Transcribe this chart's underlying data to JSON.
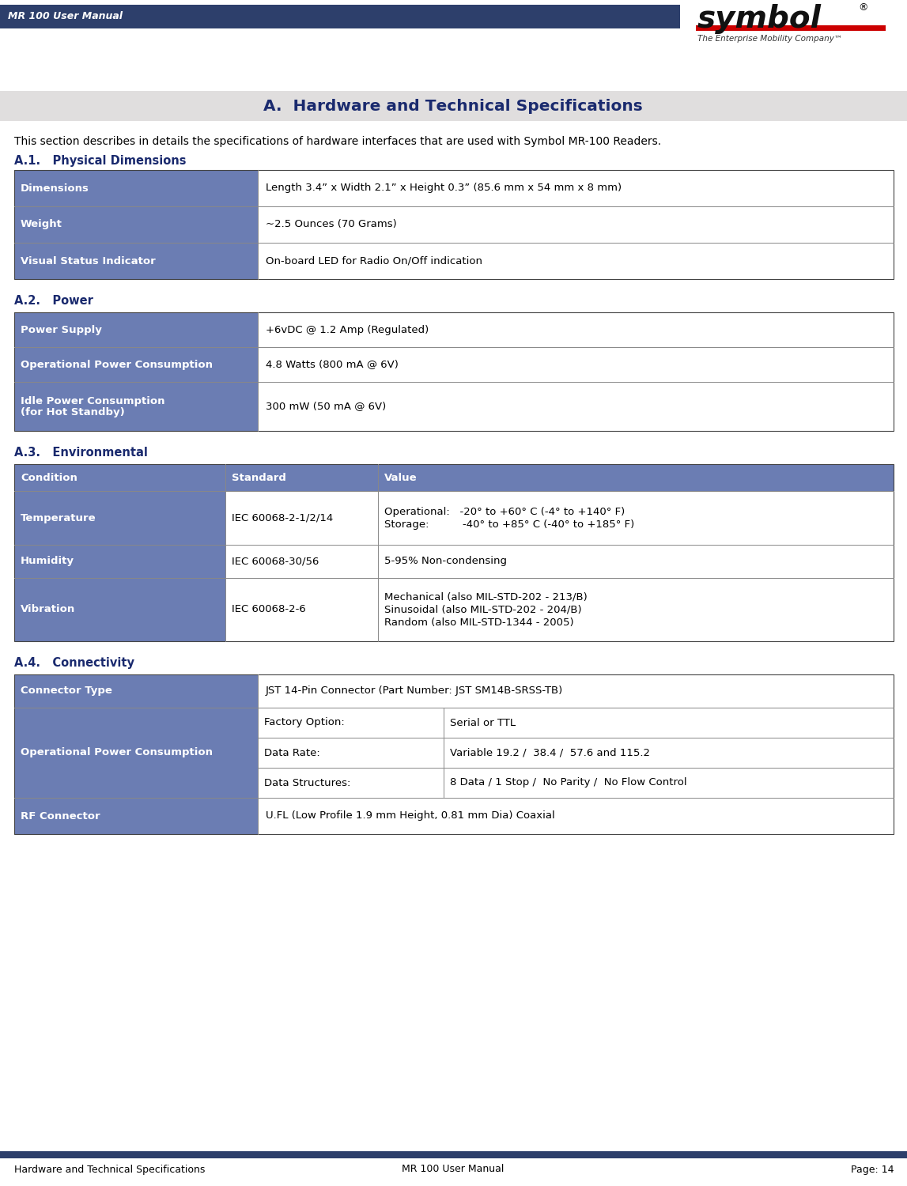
{
  "header_bg": "#2d3f6b",
  "header_text": "MR 100 User Manual",
  "header_text_color": "#ffffff",
  "title_bg": "#e0dede",
  "title_text_color": "#1a2a6e",
  "section_color": "#1a2a6e",
  "table_header_bg": "#6b7db3",
  "body_text_color": "#000000",
  "intro_text": "This section describes in details the specifications of hardware interfaces that are used with Symbol MR-100 Readers.",
  "footer_bg": "#2d3f6b",
  "footer_left": "Hardware and Technical Specifications",
  "footer_center": "MR 100 User Manual",
  "footer_right": "Page: 14"
}
